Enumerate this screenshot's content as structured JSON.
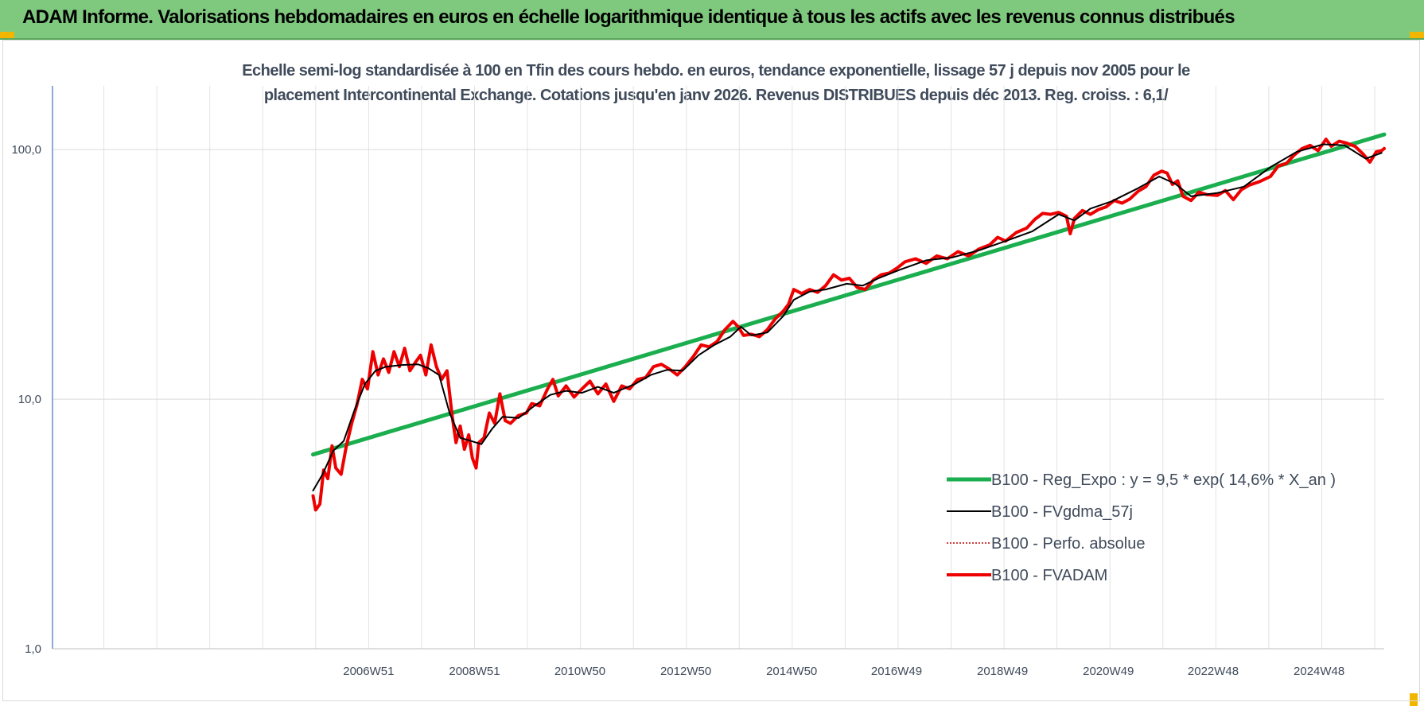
{
  "banner": {
    "title": "ADAM Informe. Valorisations hebdomadaires en euros en échelle logarithmique identique à tous les actifs avec les revenus connus distribués",
    "background": "#7fc97f"
  },
  "chart_data": {
    "type": "line",
    "title_line1": "Echelle semi-log standardisée à 100 en Tfin des cours hebdo. en euros, tendance exponentielle, lissage 57 j depuis nov 2005 pour le",
    "title_line2": "placement Intercontinental Exchange. Cotations jusqu'en janv 2026.  Revenus DISTRIBUES depuis déc 2013. Reg. croiss. : 6,1/",
    "y_scale": "log",
    "ylim": [
      1,
      180
    ],
    "y_ticks": [
      1,
      10,
      100
    ],
    "y_tick_labels": [
      "1,0",
      "10,0",
      "100,0"
    ],
    "xlim": [
      2001.0,
      2026.15
    ],
    "x_ticks": [
      {
        "x": 2006.97,
        "label": "2006W51"
      },
      {
        "x": 2008.97,
        "label": "2008W51"
      },
      {
        "x": 2010.96,
        "label": "2010W50"
      },
      {
        "x": 2012.96,
        "label": "2012W50"
      },
      {
        "x": 2014.96,
        "label": "2014W50"
      },
      {
        "x": 2016.94,
        "label": "2016W49"
      },
      {
        "x": 2018.94,
        "label": "2018W49"
      },
      {
        "x": 2020.94,
        "label": "2020W49"
      },
      {
        "x": 2022.92,
        "label": "2022W48"
      },
      {
        "x": 2024.92,
        "label": "2024W48"
      }
    ],
    "grid": true,
    "legend_position": "bottom-right",
    "series": [
      {
        "name": "B100 - Reg_Expo : y = 9,5 * exp( 14,6% *  X_an )",
        "color": "#1aae4e",
        "style": "solid-thick",
        "points": [
          [
            2005.92,
            6.0
          ],
          [
            2026.15,
            115
          ]
        ]
      },
      {
        "name": "B100 - FVgdma_57j",
        "color": "#000000",
        "style": "solid-thin",
        "points": [
          [
            2005.92,
            4.3
          ],
          [
            2006.1,
            5.0
          ],
          [
            2006.3,
            6.2
          ],
          [
            2006.5,
            6.8
          ],
          [
            2006.7,
            9.0
          ],
          [
            2006.9,
            11.5
          ],
          [
            2007.1,
            13.0
          ],
          [
            2007.3,
            13.5
          ],
          [
            2007.6,
            13.7
          ],
          [
            2007.9,
            13.8
          ],
          [
            2008.1,
            13.3
          ],
          [
            2008.3,
            12.5
          ],
          [
            2008.5,
            8.8
          ],
          [
            2008.7,
            7.0
          ],
          [
            2008.9,
            6.8
          ],
          [
            2009.1,
            6.6
          ],
          [
            2009.3,
            7.6
          ],
          [
            2009.5,
            8.5
          ],
          [
            2009.8,
            8.4
          ],
          [
            2010.1,
            9.4
          ],
          [
            2010.4,
            10.4
          ],
          [
            2010.7,
            10.8
          ],
          [
            2011.0,
            10.6
          ],
          [
            2011.3,
            11.2
          ],
          [
            2011.6,
            10.6
          ],
          [
            2012.0,
            11.5
          ],
          [
            2012.3,
            12.5
          ],
          [
            2012.6,
            13.1
          ],
          [
            2012.9,
            13.0
          ],
          [
            2013.2,
            15.0
          ],
          [
            2013.5,
            16.5
          ],
          [
            2013.8,
            17.8
          ],
          [
            2014.0,
            19.5
          ],
          [
            2014.2,
            18.0
          ],
          [
            2014.5,
            18.5
          ],
          [
            2014.8,
            21.5
          ],
          [
            2015.0,
            25.0
          ],
          [
            2015.3,
            27.0
          ],
          [
            2015.6,
            27.5
          ],
          [
            2016.0,
            29.0
          ],
          [
            2016.3,
            28.5
          ],
          [
            2016.6,
            30.5
          ],
          [
            2017.0,
            33.0
          ],
          [
            2017.5,
            36.0
          ],
          [
            2018.0,
            37.0
          ],
          [
            2018.5,
            39.5
          ],
          [
            2019.0,
            43.0
          ],
          [
            2019.5,
            47.0
          ],
          [
            2020.0,
            55.0
          ],
          [
            2020.3,
            52.0
          ],
          [
            2020.6,
            58.0
          ],
          [
            2021.0,
            62.0
          ],
          [
            2021.5,
            70.0
          ],
          [
            2021.9,
            78.0
          ],
          [
            2022.2,
            73.0
          ],
          [
            2022.5,
            65.0
          ],
          [
            2023.0,
            67.0
          ],
          [
            2023.5,
            71.0
          ],
          [
            2024.0,
            85.0
          ],
          [
            2024.5,
            98.0
          ],
          [
            2025.0,
            105.0
          ],
          [
            2025.4,
            104.0
          ],
          [
            2025.8,
            92.0
          ],
          [
            2026.1,
            97.0
          ]
        ]
      },
      {
        "name": "B100 - Perfo. absolue",
        "color": "#c00000",
        "style": "dotted",
        "points": []
      },
      {
        "name": "B100 - FVADAM",
        "color": "#ee0000",
        "style": "solid-thick",
        "points": [
          [
            2005.92,
            4.1
          ],
          [
            2005.97,
            3.6
          ],
          [
            2006.05,
            3.8
          ],
          [
            2006.12,
            5.2
          ],
          [
            2006.2,
            4.8
          ],
          [
            2006.28,
            6.5
          ],
          [
            2006.35,
            5.3
          ],
          [
            2006.45,
            5.0
          ],
          [
            2006.55,
            6.5
          ],
          [
            2006.65,
            8.0
          ],
          [
            2006.75,
            9.5
          ],
          [
            2006.85,
            12.0
          ],
          [
            2006.95,
            11.0
          ],
          [
            2007.05,
            15.5
          ],
          [
            2007.15,
            12.5
          ],
          [
            2007.25,
            14.5
          ],
          [
            2007.35,
            12.8
          ],
          [
            2007.45,
            15.5
          ],
          [
            2007.55,
            13.5
          ],
          [
            2007.65,
            16.0
          ],
          [
            2007.75,
            13.0
          ],
          [
            2007.85,
            14.0
          ],
          [
            2007.95,
            15.0
          ],
          [
            2008.05,
            12.5
          ],
          [
            2008.15,
            16.5
          ],
          [
            2008.25,
            13.5
          ],
          [
            2008.35,
            12.0
          ],
          [
            2008.45,
            13.0
          ],
          [
            2008.55,
            8.5
          ],
          [
            2008.62,
            6.7
          ],
          [
            2008.7,
            7.8
          ],
          [
            2008.78,
            6.3
          ],
          [
            2008.86,
            7.2
          ],
          [
            2008.93,
            5.8
          ],
          [
            2009.0,
            5.3
          ],
          [
            2009.05,
            6.7
          ],
          [
            2009.15,
            7.0
          ],
          [
            2009.25,
            8.8
          ],
          [
            2009.35,
            8.0
          ],
          [
            2009.45,
            10.5
          ],
          [
            2009.55,
            8.2
          ],
          [
            2009.65,
            8.0
          ],
          [
            2009.8,
            8.6
          ],
          [
            2009.95,
            8.8
          ],
          [
            2010.05,
            9.6
          ],
          [
            2010.2,
            9.4
          ],
          [
            2010.35,
            11.0
          ],
          [
            2010.45,
            12.0
          ],
          [
            2010.55,
            10.3
          ],
          [
            2010.7,
            11.3
          ],
          [
            2010.85,
            10.2
          ],
          [
            2011.0,
            11.0
          ],
          [
            2011.15,
            11.8
          ],
          [
            2011.3,
            10.5
          ],
          [
            2011.45,
            11.5
          ],
          [
            2011.6,
            9.8
          ],
          [
            2011.75,
            11.3
          ],
          [
            2011.9,
            11.0
          ],
          [
            2012.05,
            12.0
          ],
          [
            2012.2,
            12.2
          ],
          [
            2012.35,
            13.5
          ],
          [
            2012.5,
            13.8
          ],
          [
            2012.65,
            13.2
          ],
          [
            2012.8,
            12.5
          ],
          [
            2012.95,
            13.5
          ],
          [
            2013.1,
            14.8
          ],
          [
            2013.25,
            16.5
          ],
          [
            2013.4,
            16.2
          ],
          [
            2013.55,
            17.0
          ],
          [
            2013.7,
            19.0
          ],
          [
            2013.85,
            20.5
          ],
          [
            2013.95,
            19.5
          ],
          [
            2014.05,
            18.0
          ],
          [
            2014.2,
            18.2
          ],
          [
            2014.35,
            17.8
          ],
          [
            2014.5,
            19.0
          ],
          [
            2014.65,
            21.0
          ],
          [
            2014.8,
            22.5
          ],
          [
            2014.9,
            24.0
          ],
          [
            2015.0,
            27.5
          ],
          [
            2015.15,
            26.5
          ],
          [
            2015.3,
            27.5
          ],
          [
            2015.45,
            26.8
          ],
          [
            2015.6,
            28.5
          ],
          [
            2015.75,
            31.5
          ],
          [
            2015.9,
            30.0
          ],
          [
            2016.05,
            30.5
          ],
          [
            2016.2,
            28.0
          ],
          [
            2016.35,
            27.5
          ],
          [
            2016.5,
            30.0
          ],
          [
            2016.65,
            31.5
          ],
          [
            2016.8,
            32.0
          ],
          [
            2016.95,
            33.5
          ],
          [
            2017.1,
            35.5
          ],
          [
            2017.3,
            36.5
          ],
          [
            2017.5,
            35.0
          ],
          [
            2017.7,
            37.5
          ],
          [
            2017.9,
            36.5
          ],
          [
            2018.1,
            39.0
          ],
          [
            2018.3,
            37.5
          ],
          [
            2018.5,
            40.0
          ],
          [
            2018.7,
            41.5
          ],
          [
            2018.85,
            44.5
          ],
          [
            2019.0,
            43.0
          ],
          [
            2019.2,
            46.5
          ],
          [
            2019.4,
            48.5
          ],
          [
            2019.55,
            52.5
          ],
          [
            2019.7,
            55.5
          ],
          [
            2019.85,
            55.0
          ],
          [
            2020.0,
            56.0
          ],
          [
            2020.15,
            54.0
          ],
          [
            2020.22,
            46.0
          ],
          [
            2020.3,
            53.0
          ],
          [
            2020.45,
            57.0
          ],
          [
            2020.6,
            55.0
          ],
          [
            2020.75,
            57.5
          ],
          [
            2020.9,
            59.0
          ],
          [
            2021.05,
            62.5
          ],
          [
            2021.2,
            61.0
          ],
          [
            2021.35,
            63.5
          ],
          [
            2021.5,
            68.0
          ],
          [
            2021.65,
            71.0
          ],
          [
            2021.8,
            79.0
          ],
          [
            2021.95,
            82.0
          ],
          [
            2022.05,
            80.5
          ],
          [
            2022.15,
            72.5
          ],
          [
            2022.25,
            75.0
          ],
          [
            2022.35,
            65.0
          ],
          [
            2022.5,
            62.5
          ],
          [
            2022.65,
            67.5
          ],
          [
            2022.8,
            66.0
          ],
          [
            2023.0,
            65.5
          ],
          [
            2023.15,
            68.5
          ],
          [
            2023.3,
            63.0
          ],
          [
            2023.45,
            69.0
          ],
          [
            2023.6,
            72.0
          ],
          [
            2023.8,
            74.5
          ],
          [
            2024.0,
            78.0
          ],
          [
            2024.15,
            86.0
          ],
          [
            2024.3,
            88.0
          ],
          [
            2024.45,
            95.0
          ],
          [
            2024.6,
            101.0
          ],
          [
            2024.75,
            104.0
          ],
          [
            2024.9,
            99.0
          ],
          [
            2025.05,
            110.0
          ],
          [
            2025.15,
            103.0
          ],
          [
            2025.3,
            108.0
          ],
          [
            2025.45,
            106.0
          ],
          [
            2025.6,
            103.0
          ],
          [
            2025.75,
            96.0
          ],
          [
            2025.88,
            89.0
          ],
          [
            2026.0,
            98.0
          ],
          [
            2026.1,
            99.0
          ],
          [
            2026.15,
            101.0
          ]
        ]
      }
    ]
  }
}
